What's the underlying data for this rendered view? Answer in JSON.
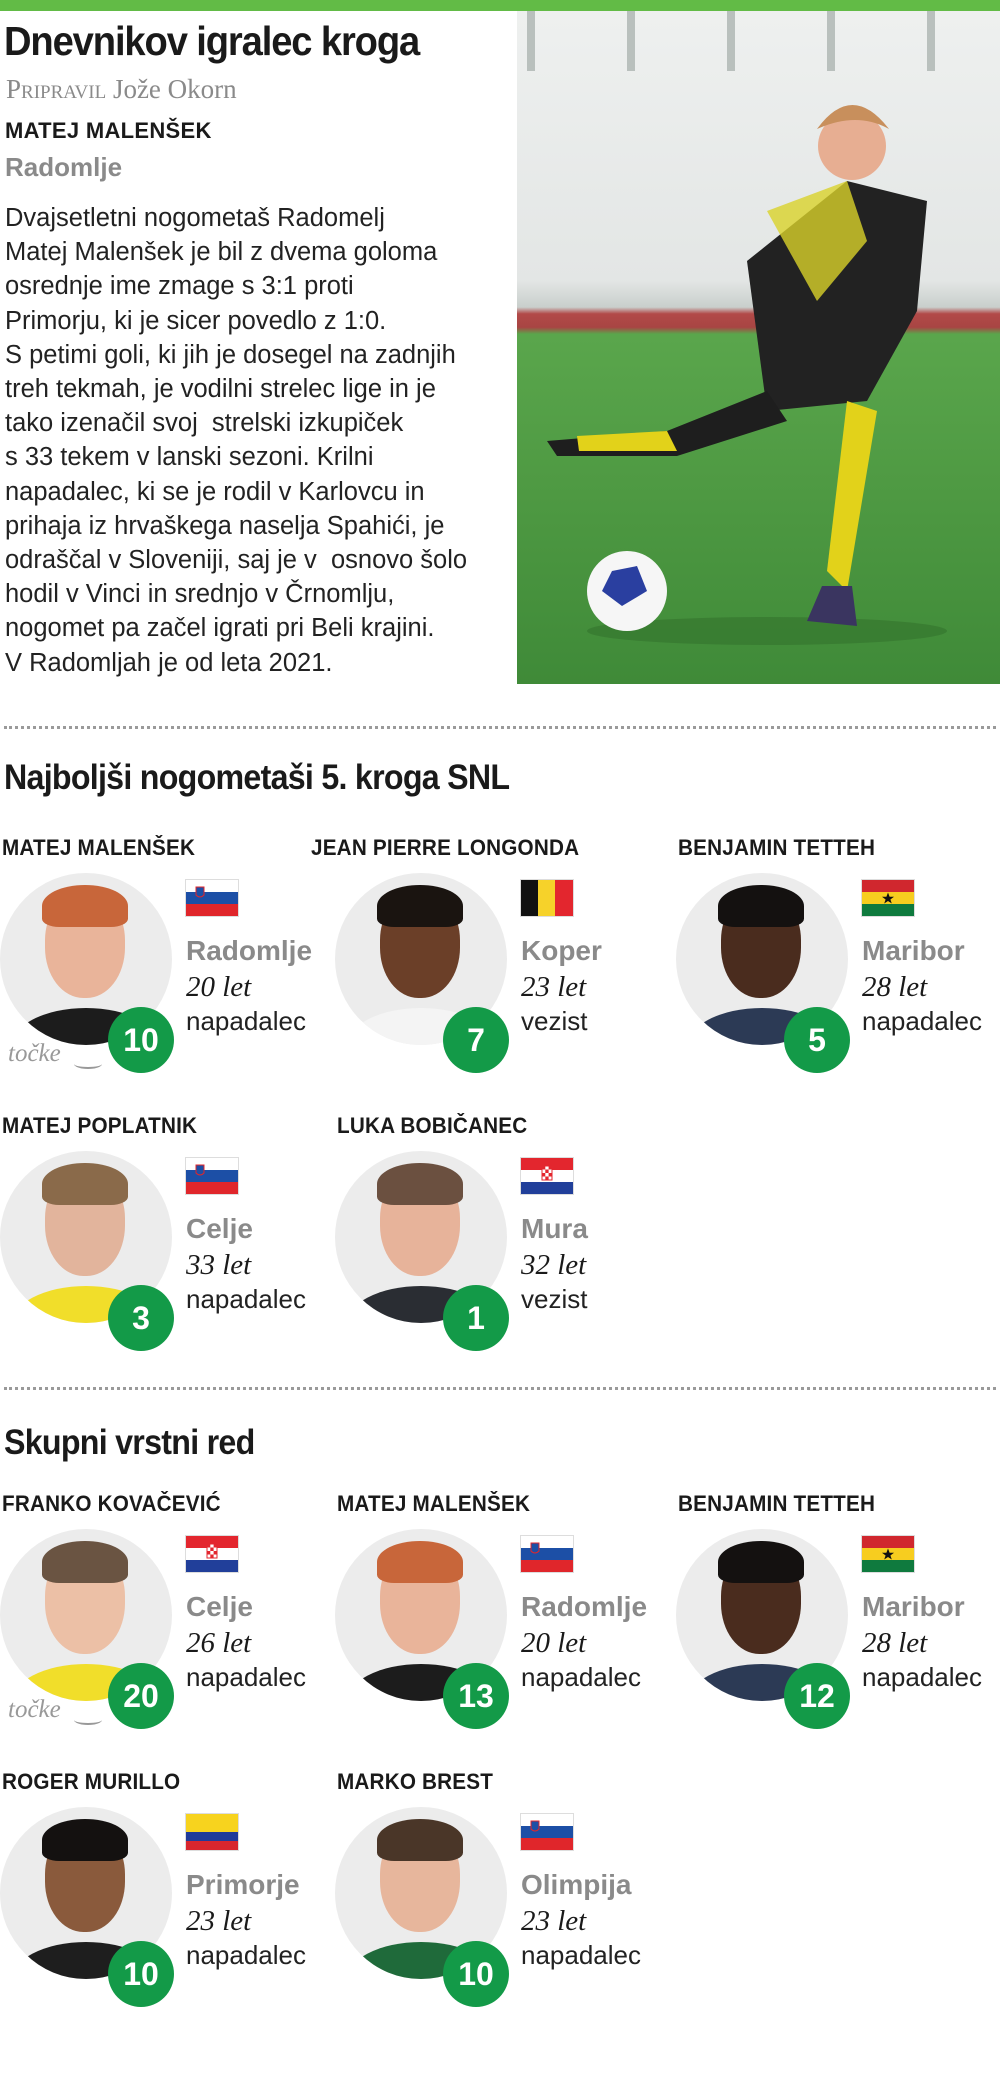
{
  "colors": {
    "accent": "#62bb46",
    "badge": "#139a48",
    "muted": "#8a8a8a"
  },
  "header": {
    "title": "Dnevnikov igralec kroga",
    "byline_label": "Pripravil",
    "byline_name": "Jože Okorn"
  },
  "featured": {
    "name": "MATEJ MALENŠEK",
    "club": "Radomlje",
    "text_lines": [
      "Dvajsetletni nogometaš Radomelj",
      "Matej Malenšek je bil z dvema goloma",
      "osrednje ime zmage s 3:1 proti",
      "Primorju, ki je sicer povedlo z 1:0.",
      "S petimi goli, ki jih je dosegel na zadnjih",
      "treh tekmah, je vodilni strelec lige in je",
      "tako izenačil svoj  strelski izkupiček",
      "s 33 tekem v lanski sezoni. Krilni",
      "napadalec, ki se je rodil v Karlovcu in",
      "prihaja iz hrvaškega naselja Spahići, je",
      "odraščal v Sloveniji, saj je v  osnovo šolo",
      "hodil v Vinci in srednjo v Črnomlju,",
      "nogomet pa začel igrati pri Beli krajini.",
      "V Radomljah je od leta 2021."
    ]
  },
  "points_label": "točke",
  "sections": [
    {
      "title": "Najboljši nogometaši 5. kroga SNL",
      "players": [
        {
          "name": "MATEJ MALENŠEK",
          "flag": "slovenia",
          "club": "Radomlje",
          "age": "20 let",
          "position": "napadalec",
          "points": "10",
          "hair": "#c8663a",
          "skin": "#e9b49a",
          "shirt": "#1c1c1c"
        },
        {
          "name": "JEAN PIERRE LONGONDA",
          "flag": "belgium",
          "club": "Koper",
          "age": "23 let",
          "position": "vezist",
          "points": "7",
          "hair": "#1a1410",
          "skin": "#6b3f28",
          "shirt": "#f4f4f4"
        },
        {
          "name": "BENJAMIN TETTEH",
          "flag": "ghana",
          "club": "Maribor",
          "age": "28 let",
          "position": "napadalec",
          "points": "5",
          "hair": "#141110",
          "skin": "#4a2c1e",
          "shirt": "#2c3a55"
        },
        {
          "name": "MATEJ POPLATNIK",
          "flag": "slovenia",
          "club": "Celje",
          "age": "33 let",
          "position": "napadalec",
          "points": "3",
          "hair": "#8a6a4a",
          "skin": "#e2b49c",
          "shirt": "#f1de2a"
        },
        {
          "name": "LUKA BOBIČANEC",
          "flag": "croatia",
          "club": "Mura",
          "age": "32 let",
          "position": "vezist",
          "points": "1",
          "hair": "#6b5040",
          "skin": "#e7b39a",
          "shirt": "#2a2d33"
        }
      ]
    },
    {
      "title": "Skupni vrstni red",
      "players": [
        {
          "name": "FRANKO KOVAČEVIĆ",
          "flag": "croatia",
          "club": "Celje",
          "age": "26 let",
          "position": "napadalec",
          "points": "20",
          "hair": "#6a5442",
          "skin": "#ecc0a6",
          "shirt": "#f1de2a"
        },
        {
          "name": "MATEJ MALENŠEK",
          "flag": "slovenia",
          "club": "Radomlje",
          "age": "20 let",
          "position": "napadalec",
          "points": "13",
          "hair": "#c8663a",
          "skin": "#e9b49a",
          "shirt": "#1c1c1c"
        },
        {
          "name": "BENJAMIN TETTEH",
          "flag": "ghana",
          "club": "Maribor",
          "age": "28 let",
          "position": "napadalec",
          "points": "12",
          "hair": "#141110",
          "skin": "#4a2c1e",
          "shirt": "#2c3a55"
        },
        {
          "name": "ROGER MURILLO",
          "flag": "colombia",
          "club": "Primorje",
          "age": "23 let",
          "position": "napadalec",
          "points": "10",
          "hair": "#141110",
          "skin": "#8a5a3c",
          "shirt": "#1e1e1e"
        },
        {
          "name": "MARKO BREST",
          "flag": "slovenia",
          "club": "Olimpija",
          "age": "23 let",
          "position": "napadalec",
          "points": "10",
          "hair": "#4a3628",
          "skin": "#e7b69c",
          "shirt": "#1f6a3a"
        }
      ]
    }
  ]
}
